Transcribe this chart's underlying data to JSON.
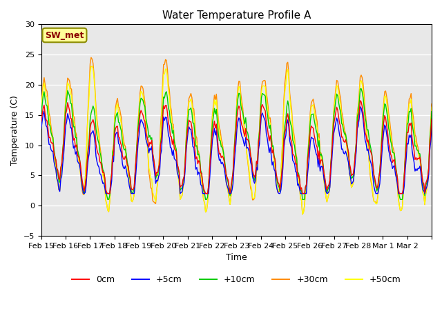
{
  "title": "Water Temperature Profile A",
  "xlabel": "Time",
  "ylabel": "Temperature (C)",
  "ylim": [
    -5,
    30
  ],
  "yticks": [
    -5,
    0,
    5,
    10,
    15,
    20,
    25,
    30
  ],
  "annotation_text": "SW_met",
  "annotation_color": "#8B0000",
  "annotation_bg": "#FFFF99",
  "series_colors": {
    "0cm": "#FF0000",
    "+5cm": "#0000FF",
    "+10cm": "#00CC00",
    "+30cm": "#FF8C00",
    "+50cm": "#FFFF00"
  },
  "series_labels": [
    "0cm",
    "+5cm",
    "+10cm",
    "+30cm",
    "+50cm"
  ],
  "num_points": 400,
  "plot_bg": "#E8E8E8",
  "grid_color": "#FFFFFF",
  "tick_positions": [
    0,
    1,
    2,
    3,
    4,
    5,
    6,
    7,
    8,
    9,
    10,
    11,
    12,
    13,
    14,
    15,
    16
  ],
  "tick_labels": [
    "Feb 15",
    "Feb 16",
    "Feb 17",
    "Feb 18",
    "Feb 19",
    "Feb 20",
    "Feb 21",
    "Feb 22",
    "Feb 23",
    "Feb 24",
    "Feb 25",
    "Feb 26",
    "Feb 27",
    "Feb 28",
    "Mar 1",
    "Mar 2",
    ""
  ]
}
